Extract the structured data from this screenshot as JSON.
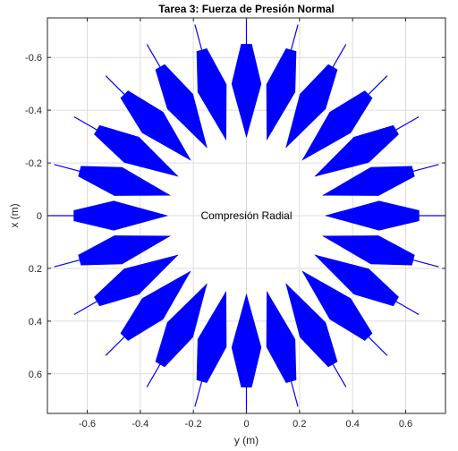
{
  "chart_data": {
    "type": "quiver",
    "title": "Tarea 3: Fuerza de Presión Normal",
    "xlabel": "y (m)",
    "ylabel": "x (m)",
    "annotation": {
      "text": "Compresión Radial",
      "x": 0,
      "y": 0
    },
    "xlim": [
      -0.75,
      0.75
    ],
    "ylim": [
      -0.75,
      0.75
    ],
    "y_reversed": true,
    "grid": true,
    "xticks": [
      -0.6,
      -0.4,
      -0.2,
      0,
      0.2,
      0.4,
      0.6
    ],
    "xtick_labels": [
      "-0.6",
      "-0.4",
      "-0.2",
      "0",
      "0.2",
      "0.4",
      "0.6"
    ],
    "yticks": [
      -0.6,
      -0.4,
      -0.2,
      0,
      0.2,
      0.4,
      0.6
    ],
    "ytick_labels": [
      "-0.6",
      "-0.4",
      "-0.2",
      "0",
      "0.2",
      "0.4",
      "0.6"
    ],
    "series": [
      {
        "color": "#0000ff",
        "count": 24,
        "angles_deg": [
          0,
          15,
          30,
          45,
          60,
          75,
          90,
          105,
          120,
          135,
          150,
          165,
          180,
          195,
          210,
          225,
          240,
          255,
          270,
          285,
          300,
          315,
          330,
          345
        ],
        "arrow_start_r": 0.75,
        "arrow_end_r": 0.3,
        "wide_band_r": [
          0.3,
          0.65
        ],
        "direction": "inward"
      }
    ]
  }
}
